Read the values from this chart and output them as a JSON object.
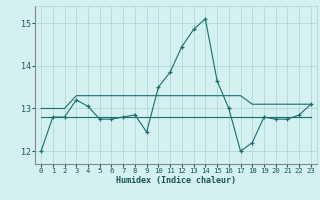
{
  "xlabel": "Humidex (Indice chaleur)",
  "background_color": "#d4f0f0",
  "grid_color": "#aad4d4",
  "line_color": "#1a6e6e",
  "xlim": [
    -0.5,
    23.5
  ],
  "ylim": [
    11.7,
    15.4
  ],
  "yticks": [
    12,
    13,
    14,
    15
  ],
  "xticks": [
    0,
    1,
    2,
    3,
    4,
    5,
    6,
    7,
    8,
    9,
    10,
    11,
    12,
    13,
    14,
    15,
    16,
    17,
    18,
    19,
    20,
    21,
    22,
    23
  ],
  "main_curve": [
    12.0,
    12.8,
    12.8,
    13.2,
    13.05,
    12.75,
    12.75,
    12.8,
    12.85,
    12.45,
    13.5,
    13.85,
    14.45,
    14.85,
    15.1,
    13.65,
    13.0,
    12.0,
    12.2,
    12.8,
    12.75,
    12.75,
    12.85,
    13.1
  ],
  "flat_upper": [
    13.0,
    13.0,
    13.0,
    13.3,
    13.3,
    13.3,
    13.3,
    13.3,
    13.3,
    13.3,
    13.3,
    13.3,
    13.3,
    13.3,
    13.3,
    13.3,
    13.3,
    13.3,
    13.1,
    13.1,
    13.1,
    13.1,
    13.1,
    13.1
  ],
  "flat_lower": [
    12.8,
    12.8,
    12.8,
    12.8,
    12.8,
    12.8,
    12.8,
    12.8,
    12.8,
    12.8,
    12.8,
    12.8,
    12.8,
    12.8,
    12.8,
    12.8,
    12.8,
    12.8,
    12.8,
    12.8,
    12.8,
    12.8,
    12.8,
    12.8
  ]
}
